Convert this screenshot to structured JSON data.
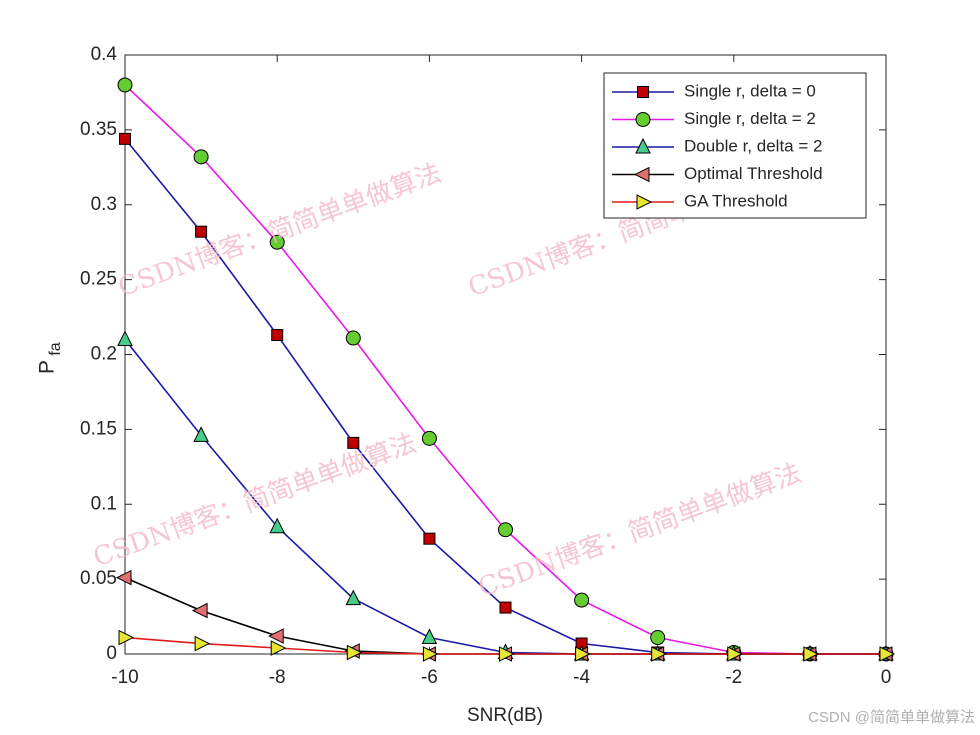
{
  "chart_data": {
    "type": "line",
    "xlabel": "SNR(dB)",
    "ylabel": "P",
    "ylabel_subscript": "fa",
    "x": [
      -10,
      -9,
      -8,
      -7,
      -6,
      -5,
      -4,
      -3,
      -2,
      -1,
      0
    ],
    "xlim": [
      -10,
      0
    ],
    "xticks": [
      -10,
      -8,
      -6,
      -4,
      -2,
      0
    ],
    "ylim": [
      0,
      0.4
    ],
    "yticks": [
      0,
      0.05,
      0.1,
      0.15,
      0.2,
      0.25,
      0.3,
      0.35,
      0.4
    ],
    "legend": "upper right",
    "series": [
      {
        "name": "Single r, delta = 0",
        "color": "#1a1aa6",
        "marker": "square",
        "marker_color": "#c00000",
        "values": [
          0.344,
          0.282,
          0.213,
          0.141,
          0.077,
          0.031,
          0.007,
          0.001,
          0,
          0,
          0
        ]
      },
      {
        "name": "Single r, delta = 2",
        "color": "#e619e6",
        "marker": "circle",
        "marker_color": "#66cc33",
        "values": [
          0.38,
          0.332,
          0.275,
          0.211,
          0.144,
          0.083,
          0.036,
          0.011,
          0.001,
          0,
          0
        ]
      },
      {
        "name": "Double r, delta = 2",
        "color": "#1a1aa6",
        "marker": "triangle-up",
        "marker_color": "#44cc88",
        "values": [
          0.21,
          0.146,
          0.085,
          0.037,
          0.011,
          0.001,
          0,
          0,
          0,
          0,
          0
        ]
      },
      {
        "name": "Optimal Threshold",
        "color": "#000000",
        "marker": "triangle-left",
        "marker_color": "#e07070",
        "values": [
          0.051,
          0.029,
          0.012,
          0.002,
          0,
          0,
          0,
          0,
          0,
          0,
          0
        ]
      },
      {
        "name": "GA Threshold",
        "color": "#e01a1a",
        "marker": "triangle-right",
        "marker_color": "#e6e633",
        "values": [
          0.011,
          0.007,
          0.004,
          0.001,
          0,
          0,
          0,
          0,
          0,
          0,
          0
        ]
      }
    ],
    "watermark": "CSDN @简简单单做算法",
    "watermark_overlay": "CSDN博客：简简单单做算法"
  }
}
